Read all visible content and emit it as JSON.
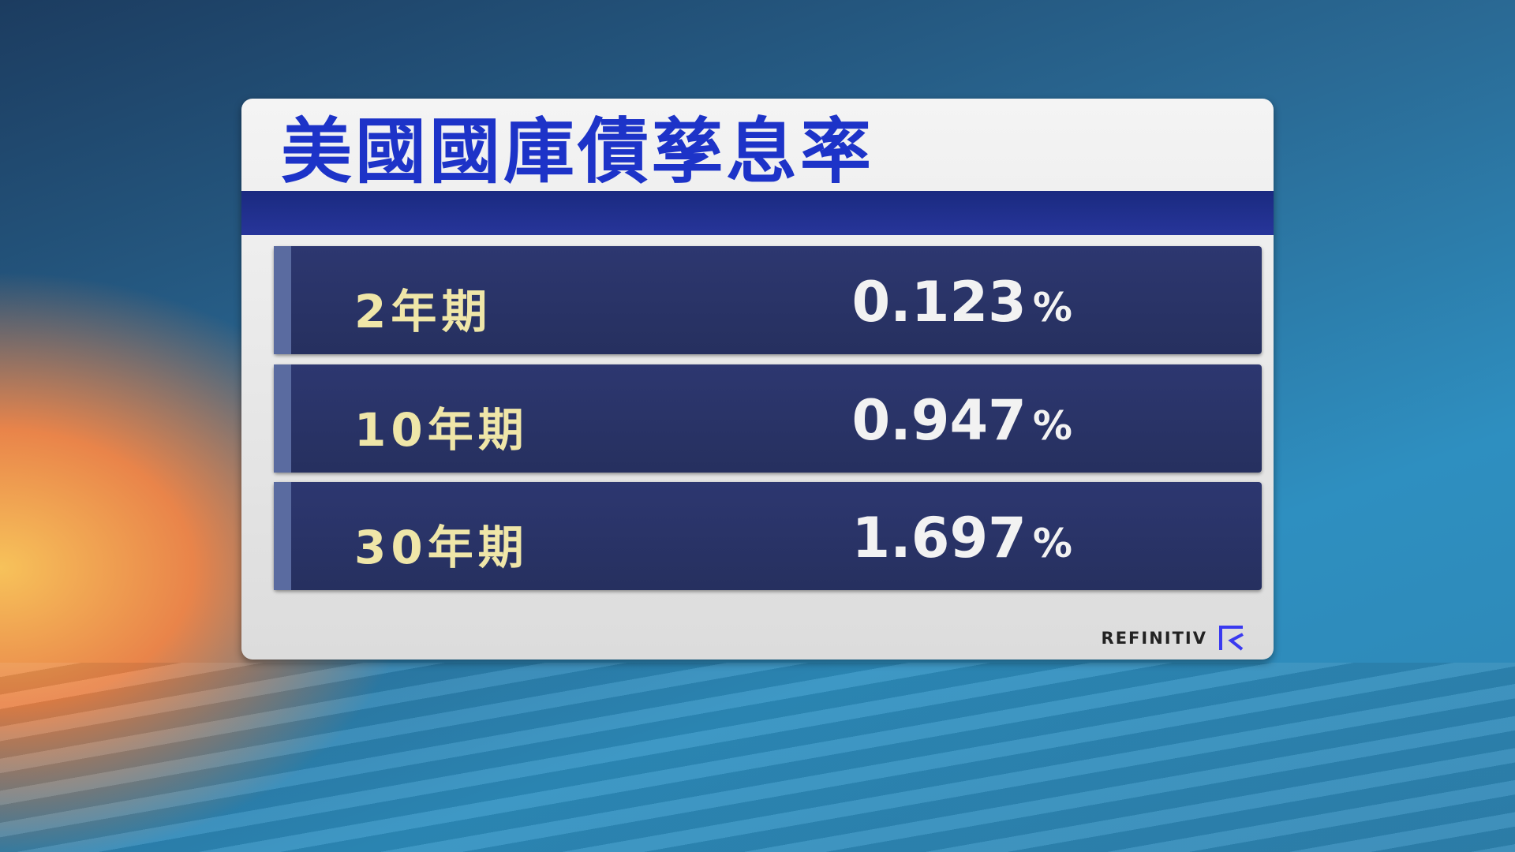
{
  "title": "美國國庫債孳息率",
  "rows": [
    {
      "label": "2年期",
      "value": "0.123",
      "unit": "%"
    },
    {
      "label": "10年期",
      "value": "0.947",
      "unit": "%"
    },
    {
      "label": "30年期",
      "value": "1.697",
      "unit": "%"
    }
  ],
  "logo": "REFINITIV",
  "colors": {
    "title": "#1d33c8",
    "row": "#2d3770",
    "label": "#efe6a8"
  }
}
